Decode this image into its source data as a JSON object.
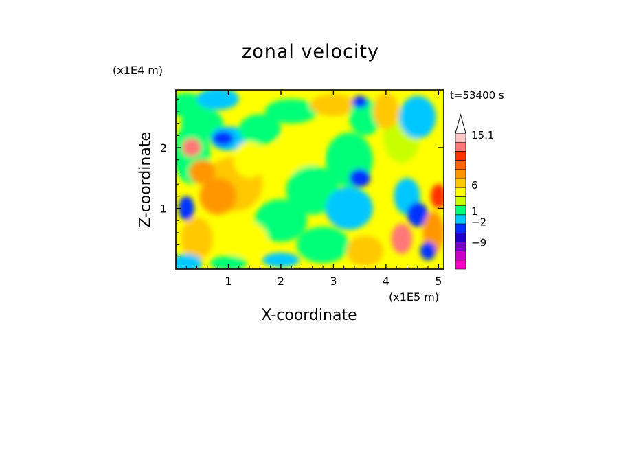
{
  "chart_data": {
    "type": "heatmap",
    "title": "zonal velocity",
    "xlabel": "X-coordinate",
    "ylabel": "Z-coordinate",
    "x_unit": "(x1E5 m)",
    "y_unit": "(x1E4 m)",
    "time_label": "t=53400 s",
    "xlim": [
      0,
      5.1
    ],
    "ylim": [
      0,
      2.95
    ],
    "x_ticks": [
      "1",
      "2",
      "3",
      "4",
      "5"
    ],
    "y_ticks": [
      "1",
      "2"
    ],
    "colorbar": {
      "labels": [
        "15.1",
        "6",
        "1",
        "-2",
        "-9"
      ],
      "colors": [
        "#ff00c8",
        "#c800c8",
        "#7800c8",
        "#1e00c8",
        "#0030ff",
        "#00c8ff",
        "#00ff78",
        "#c8ff00",
        "#ffff00",
        "#ffc800",
        "#ff9600",
        "#ff6400",
        "#ff3200",
        "#ff7878",
        "#ffc8c8"
      ]
    },
    "palette": {
      "magenta": "#ff00c8",
      "purple": "#c800c8",
      "violet": "#7800c8",
      "navy": "#1e00c8",
      "blue": "#0030ff",
      "cyan": "#00c8ff",
      "green": "#00ff78",
      "lime": "#c8ff00",
      "yellow": "#ffff00",
      "gold": "#ffc800",
      "orange": "#ff9600",
      "dark_orange": "#ff6400",
      "red": "#ff3200",
      "salmon": "#ff7878",
      "pink": "#ffc8c8"
    }
  }
}
